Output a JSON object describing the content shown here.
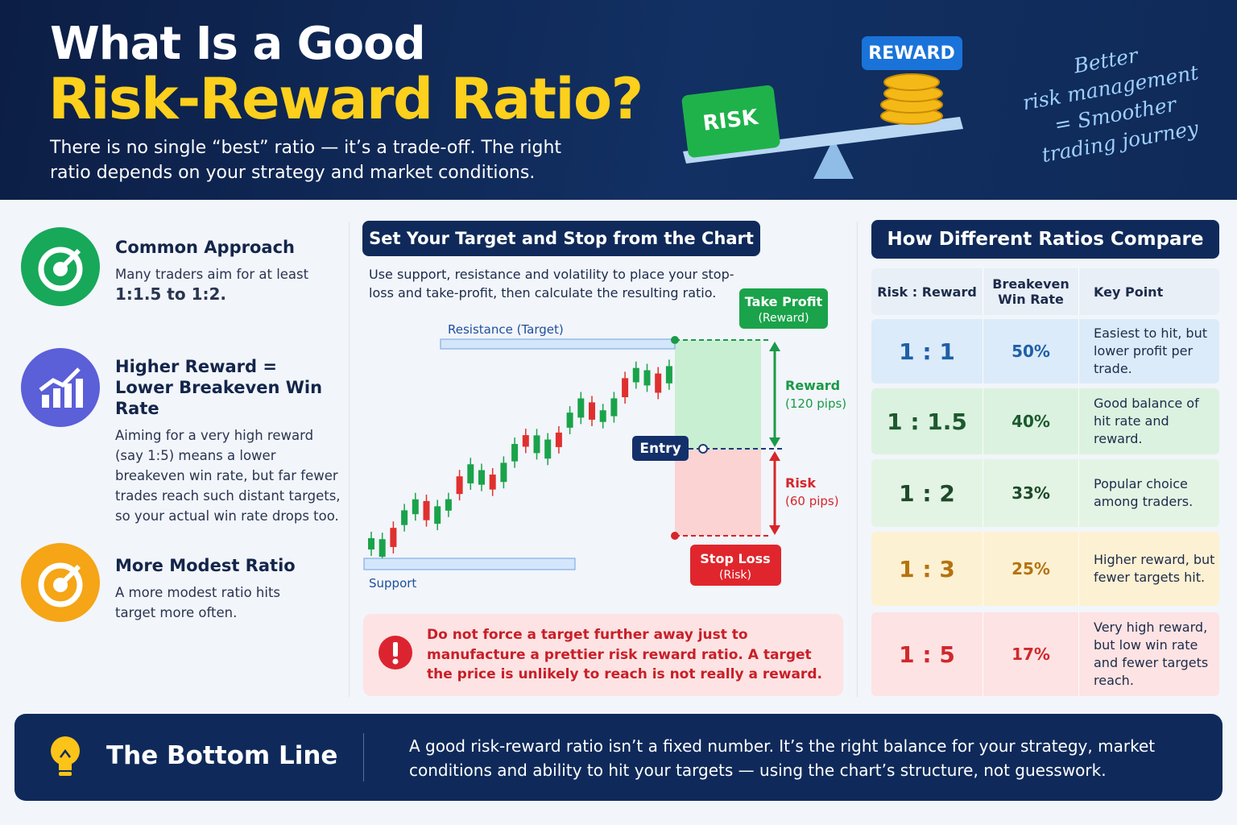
{
  "header": {
    "title_line1": "What Is a Good",
    "title_line2": "Risk-Reward Ratio?",
    "subtitle": "There is no single “best” ratio — it’s a trade-off. The right ratio depends on your strategy and market conditions.",
    "risk_label": "RISK",
    "reward_label": "REWARD",
    "note": [
      "Better",
      "risk management",
      "= Smoother",
      "trading journey"
    ]
  },
  "approaches": [
    {
      "title": [
        "Common Approach"
      ],
      "text": "Many traders aim for at least",
      "highlight": "1:1.5 to 1:2."
    },
    {
      "title": [
        "Higher Reward =",
        "Lower Breakeven Win Rate"
      ],
      "text": "Aiming for a very high reward (say 1:5) means a lower breakeven win rate, but far fewer trades reach such distant targets, so your actual win rate drops too."
    },
    {
      "title": [
        "More Modest Ratio"
      ],
      "text": "A more modest ratio hits target more often."
    }
  ],
  "chart": {
    "heading": "Set Your Target and Stop from the Chart",
    "description": "Use support, resistance and volatility to place your stop-loss and take-profit, then calculate the resulting ratio.",
    "resistance": "Resistance (Target)",
    "support": "Support",
    "take_profit": [
      "Take Profit",
      "(Reward)"
    ],
    "reward": [
      "Reward",
      "(120 pips)"
    ],
    "entry": "Entry",
    "risk": [
      "Risk",
      "(60 pips)"
    ],
    "stop_loss": [
      "Stop Loss",
      "(Risk)"
    ],
    "warning": "Do not force a target further away just to manufacture a prettier risk reward ratio. A target the price is unlikely to reach is not really a reward."
  },
  "table": {
    "heading": "How Different Ratios Compare",
    "columns": [
      "Risk : Reward",
      "Breakeven Win Rate",
      "Key Point"
    ],
    "rows": [
      [
        "1 : 1",
        "50%",
        "Easiest to hit, but lower profit per trade."
      ],
      [
        "1 : 1.5",
        "40%",
        "Good balance of hit rate and reward."
      ],
      [
        "1 : 2",
        "33%",
        "Popular choice among traders."
      ],
      [
        "1 : 3",
        "25%",
        "Higher reward, but fewer targets hit."
      ],
      [
        "1 : 5",
        "17%",
        "Very high reward, but low win rate and fewer targets reach."
      ]
    ]
  },
  "bottom": {
    "title": "The Bottom Line",
    "text": "A good risk-reward ratio isn’t a fixed number. It’s the right balance for your strategy, market conditions and ability to hit your targets — using the chart’s structure, not guesswork."
  }
}
